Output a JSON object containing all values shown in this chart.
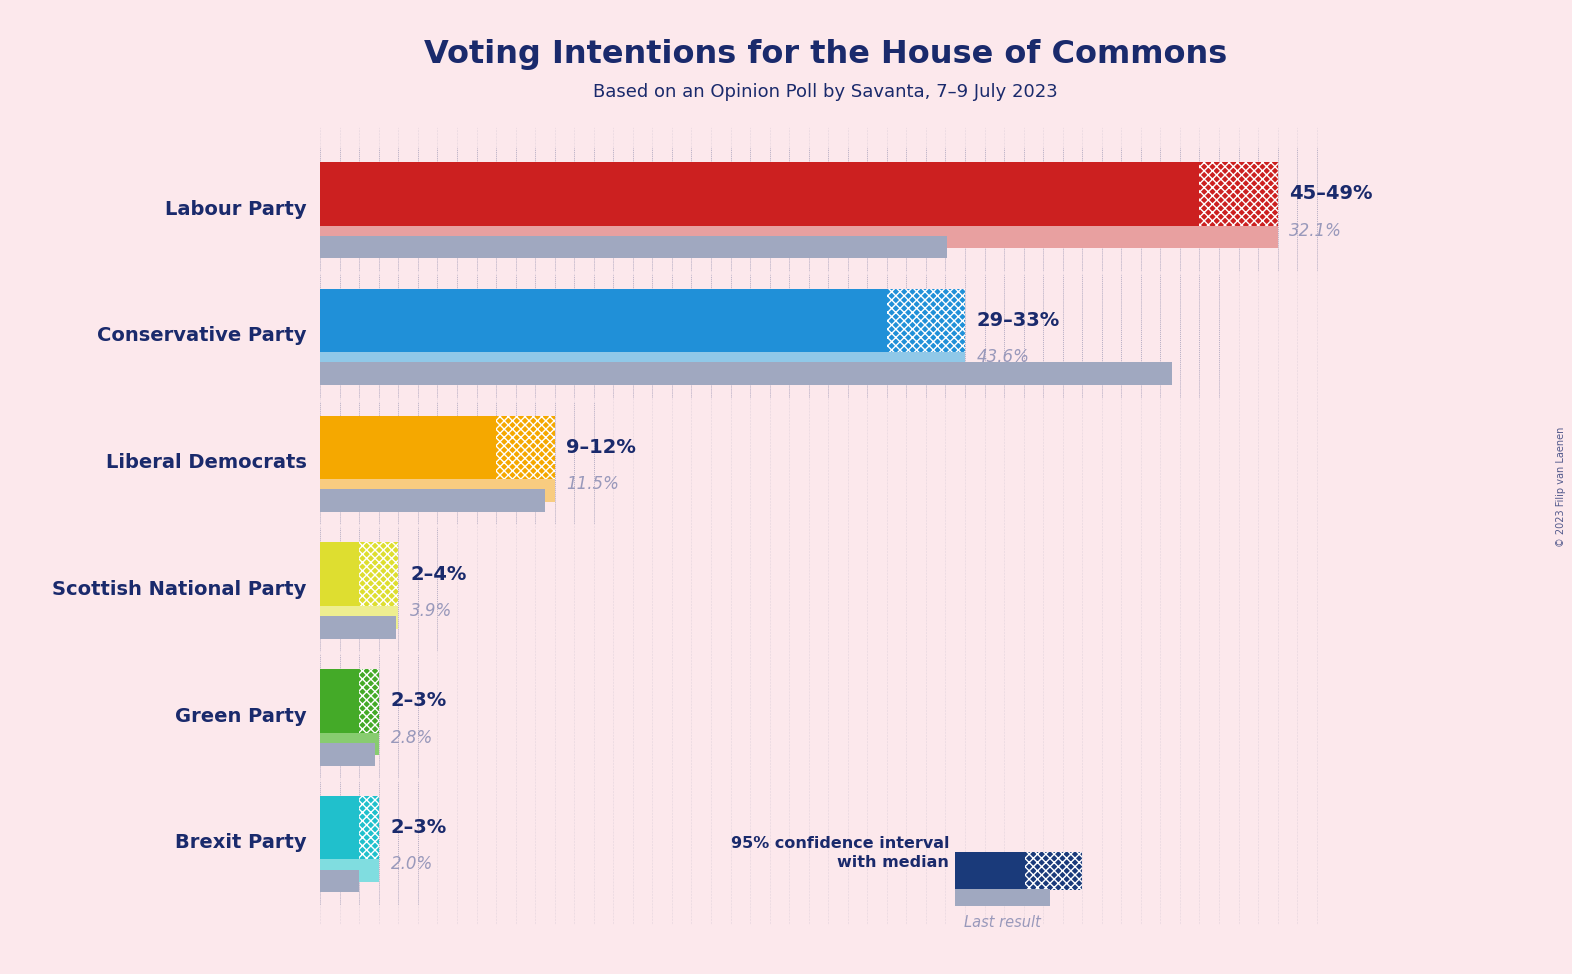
{
  "title": "Voting Intentions for the House of Commons",
  "subtitle": "Based on an Opinion Poll by Savanta, 7–9 July 2023",
  "copyright": "© 2023 Filip van Laenen",
  "background_color": "#fce8ec",
  "parties": [
    {
      "name": "Labour Party",
      "ci_low": 45,
      "ci_high": 49,
      "last_result": 32.1,
      "color": "#cc2020",
      "color_light": "#e8a0a0",
      "label": "45–49%",
      "last_label": "32.1%"
    },
    {
      "name": "Conservative Party",
      "ci_low": 29,
      "ci_high": 33,
      "last_result": 43.6,
      "color": "#2090d8",
      "color_light": "#90c8e8",
      "label": "29–33%",
      "last_label": "43.6%"
    },
    {
      "name": "Liberal Democrats",
      "ci_low": 9,
      "ci_high": 12,
      "last_result": 11.5,
      "color": "#f5a800",
      "color_light": "#f8cc80",
      "label": "9–12%",
      "last_label": "11.5%"
    },
    {
      "name": "Scottish National Party",
      "ci_low": 2,
      "ci_high": 4,
      "last_result": 3.9,
      "color": "#dede30",
      "color_light": "#eeee90",
      "label": "2–4%",
      "last_label": "3.9%"
    },
    {
      "name": "Green Party",
      "ci_low": 2,
      "ci_high": 3,
      "last_result": 2.8,
      "color": "#44aa28",
      "color_light": "#88cc70",
      "label": "2–3%",
      "last_label": "2.8%"
    },
    {
      "name": "Brexit Party",
      "ci_low": 2,
      "ci_high": 3,
      "last_result": 2.0,
      "color": "#20c0cc",
      "color_light": "#80dde0",
      "label": "2–3%",
      "last_label": "2.0%"
    }
  ],
  "x_max": 52,
  "dark_navy": "#1a2a6c",
  "gray_text": "#9999bb",
  "last_bar_color": "#a0a8c0",
  "grid_color": "#1a2a6c",
  "legend_navy": "#1a3a7a"
}
